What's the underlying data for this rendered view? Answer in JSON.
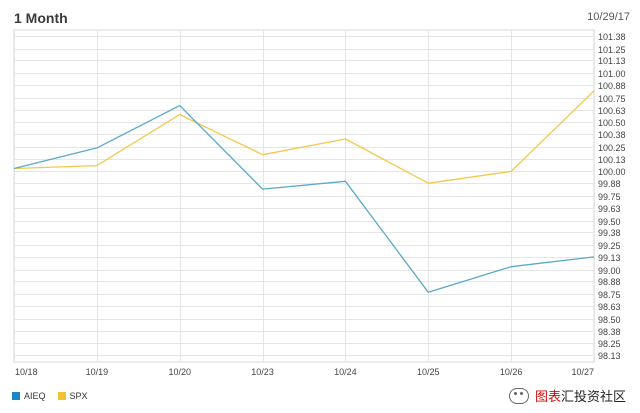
{
  "header": {
    "title": "1 Month",
    "date": "10/29/17"
  },
  "legend": {
    "items": [
      {
        "name": "AIEQ",
        "color": "#1a86c8"
      },
      {
        "name": "SPX",
        "color": "#f2c12e"
      }
    ]
  },
  "watermark": {
    "red_text": "图表",
    "dark_text": "汇投资社区"
  },
  "chart_data": {
    "type": "line",
    "title": "1 Month",
    "xlabel": "",
    "ylabel": "",
    "categories": [
      "10/18",
      "10/19",
      "10/20",
      "10/23",
      "10/24",
      "10/25",
      "10/26",
      "10/27"
    ],
    "y_ticks": [
      "101.38",
      "101.25",
      "101.13",
      "101.00",
      "100.88",
      "100.75",
      "100.63",
      "100.50",
      "100.38",
      "100.25",
      "100.13",
      "100.00",
      "99.88",
      "99.75",
      "99.63",
      "99.50",
      "99.38",
      "99.25",
      "99.13",
      "99.00",
      "98.88",
      "98.75",
      "98.63",
      "98.50",
      "98.38",
      "98.25",
      "98.13"
    ],
    "ylim": [
      98.0,
      101.5
    ],
    "grid": true,
    "legend_position": "bottom-left",
    "series": [
      {
        "name": "AIEQ",
        "color": "#5aa9cc",
        "x": [
          0,
          1,
          2,
          3,
          4,
          5,
          6,
          7
        ],
        "values": [
          100.03,
          100.24,
          100.67,
          99.82,
          99.9,
          98.77,
          99.03,
          99.13
        ]
      },
      {
        "name": "SPX",
        "color": "#f2c94c",
        "x": [
          0,
          1,
          2,
          3,
          4,
          5,
          6,
          7
        ],
        "values": [
          100.03,
          100.06,
          100.58,
          100.17,
          100.33,
          99.88,
          100.0,
          100.82
        ]
      }
    ]
  }
}
